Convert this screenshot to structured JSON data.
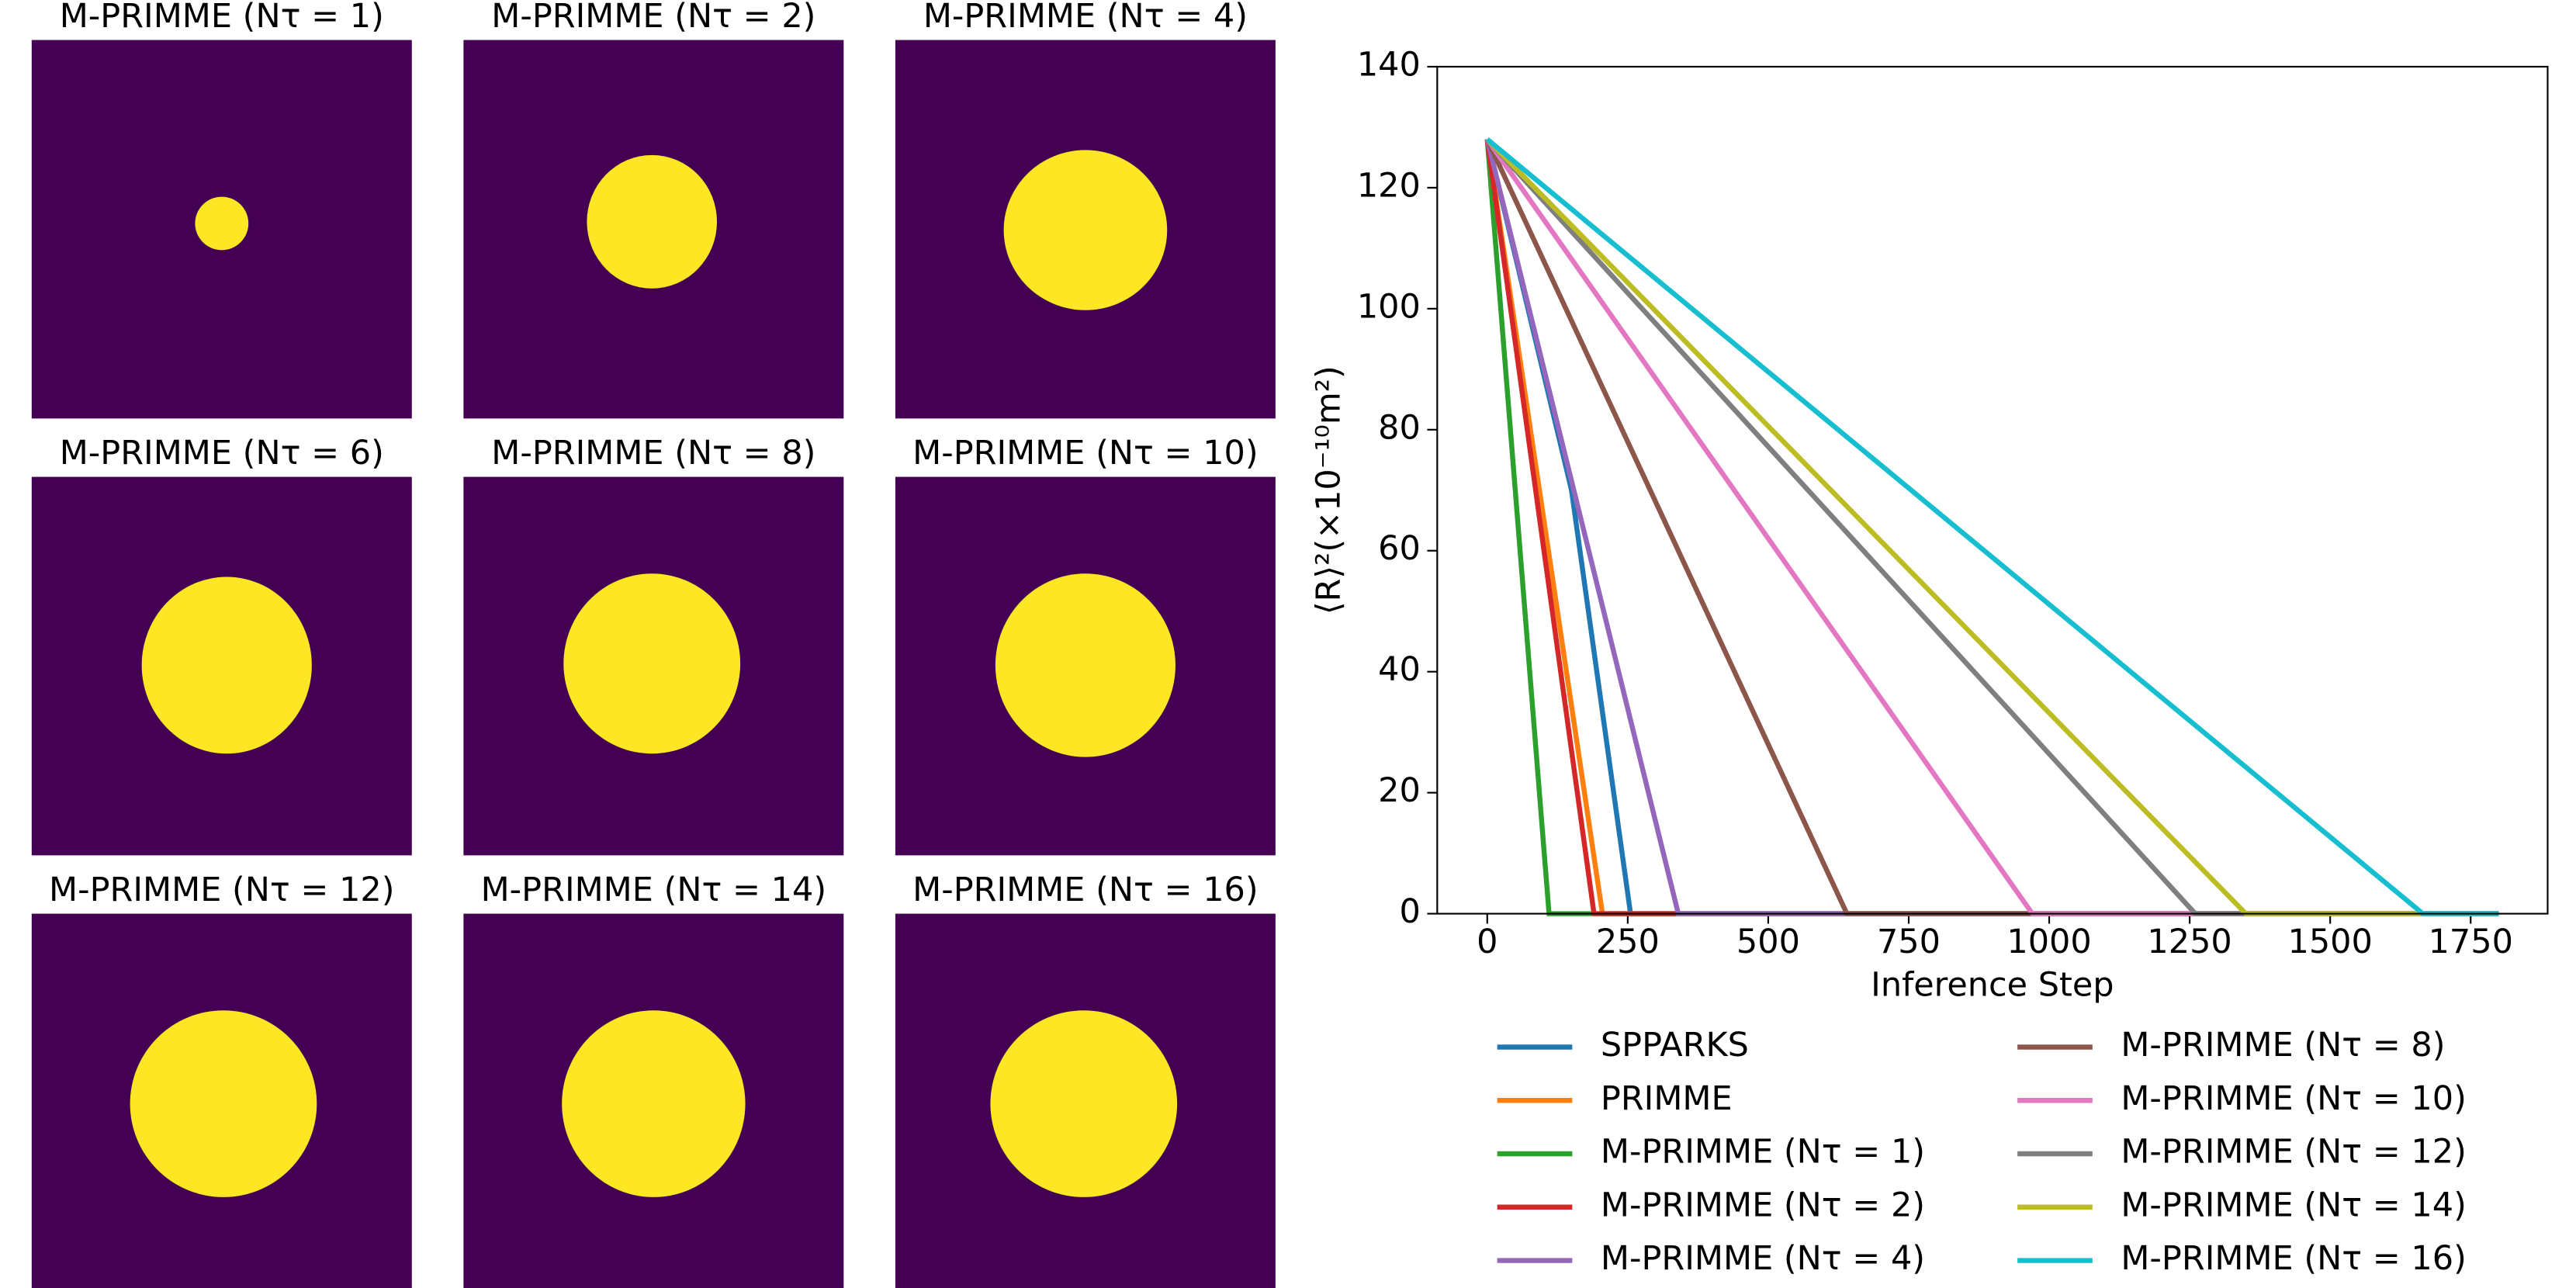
{
  "panels": [
    {
      "title": "M-PRIMME (Nτ = 1)"
    },
    {
      "title": "M-PRIMME (Nτ = 2)"
    },
    {
      "title": "M-PRIMME (Nτ = 4)"
    },
    {
      "title": "M-PRIMME (Nτ = 6)"
    },
    {
      "title": "M-PRIMME (Nτ = 8)"
    },
    {
      "title": "M-PRIMME (Nτ = 10)"
    },
    {
      "title": "M-PRIMME (Nτ = 12)"
    },
    {
      "title": "M-PRIMME (Nτ = 14)"
    },
    {
      "title": "M-PRIMME (Nτ = 16)"
    }
  ],
  "chart_data": {
    "type": "line",
    "x_label": "Inference Step",
    "y_label": "⟨R⟩²(×10⁻¹⁰m²)",
    "xlim": [
      -89,
      1887
    ],
    "ylim": [
      0,
      140
    ],
    "xticks": [
      0,
      250,
      500,
      750,
      1000,
      1250,
      1500,
      1750
    ],
    "yticks": [
      0,
      20,
      40,
      60,
      80,
      100,
      120,
      140
    ],
    "legend": "below",
    "series": [
      {
        "name": "SPPARKS",
        "color": "#1f77b4",
        "x": [
          0,
          150,
          255,
          1800
        ],
        "values": [
          128,
          70,
          0,
          0
        ]
      },
      {
        "name": "PRIMME",
        "color": "#ff7f0e",
        "x": [
          0,
          205,
          1800
        ],
        "values": [
          128,
          0,
          0
        ]
      },
      {
        "name": "M-PRIMME (Nτ = 1)",
        "color": "#2ca02c",
        "x": [
          0,
          110,
          1800
        ],
        "values": [
          128,
          0,
          0
        ]
      },
      {
        "name": "M-PRIMME (Nτ = 2)",
        "color": "#d62728",
        "x": [
          0,
          190,
          1800
        ],
        "values": [
          128,
          0,
          0
        ]
      },
      {
        "name": "M-PRIMME (Nτ = 4)",
        "color": "#9467bd",
        "x": [
          0,
          340,
          1800
        ],
        "values": [
          128,
          0,
          0
        ]
      },
      {
        "name": "M-PRIMME (Nτ = 8)",
        "color": "#8c564b",
        "x": [
          0,
          640,
          1800
        ],
        "values": [
          128,
          0,
          0
        ]
      },
      {
        "name": "M-PRIMME (Nτ = 10)",
        "color": "#e377c2",
        "x": [
          0,
          970,
          1800
        ],
        "values": [
          128,
          0,
          0
        ]
      },
      {
        "name": "M-PRIMME (Nτ = 12)",
        "color": "#7f7f7f",
        "x": [
          0,
          1260,
          1800
        ],
        "values": [
          128,
          0,
          0
        ]
      },
      {
        "name": "M-PRIMME (Nτ = 14)",
        "color": "#bcbd22",
        "x": [
          0,
          1350,
          1800
        ],
        "values": [
          128,
          0,
          0
        ]
      },
      {
        "name": "M-PRIMME (Nτ = 16)",
        "color": "#17becf",
        "x": [
          0,
          1665,
          1800
        ],
        "values": [
          128,
          0,
          0
        ]
      }
    ]
  }
}
